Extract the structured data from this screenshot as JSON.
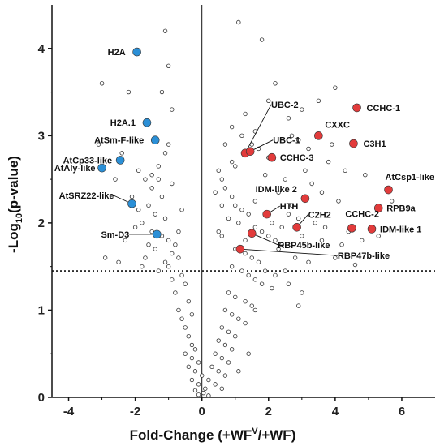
{
  "chart_data": {
    "type": "scatter",
    "title": "",
    "xlabel_main": "Fold-Change (+WF",
    "xlabel_sup": "V",
    "xlabel_tail": "/+WF)",
    "ylabel_pre": "-Log",
    "ylabel_sub": "10",
    "ylabel_post": "(p-value)",
    "xlim": [
      -4.5,
      7
    ],
    "ylim": [
      0,
      4.5
    ],
    "xticks": [
      -4,
      -2,
      0,
      2,
      4,
      6
    ],
    "yticks": [
      0,
      1,
      2,
      3,
      4
    ],
    "threshold_y": 1.45,
    "vline_x": 0,
    "colors": {
      "down": "#2b8fd6",
      "up": "#e23b3b",
      "background": "#ffffff",
      "bg_stroke": "#333333"
    },
    "background_points": [
      [
        -1.1,
        4.2
      ],
      [
        -1.0,
        3.8
      ],
      [
        -1.2,
        3.5
      ],
      [
        -0.9,
        3.3
      ],
      [
        -3.0,
        3.6
      ],
      [
        -1.0,
        2.9
      ],
      [
        -1.1,
        2.8
      ],
      [
        -1.3,
        2.5
      ],
      [
        -1.5,
        2.4
      ],
      [
        -1.2,
        2.3
      ],
      [
        -1.6,
        2.2
      ],
      [
        -1.4,
        2.1
      ],
      [
        -1.1,
        2.05
      ],
      [
        -1.8,
        2.0
      ],
      [
        -2.0,
        1.95
      ],
      [
        -1.5,
        1.9
      ],
      [
        -1.2,
        1.85
      ],
      [
        -1.0,
        1.8
      ],
      [
        -0.8,
        1.75
      ],
      [
        -1.4,
        1.7
      ],
      [
        -0.7,
        1.6
      ],
      [
        -1.7,
        1.6
      ],
      [
        -2.5,
        1.55
      ],
      [
        -1.0,
        1.5
      ],
      [
        -1.3,
        1.45
      ],
      [
        -0.6,
        1.4
      ],
      [
        -0.9,
        1.35
      ],
      [
        -0.5,
        1.3
      ],
      [
        -0.8,
        1.2
      ],
      [
        -0.4,
        1.1
      ],
      [
        -0.7,
        1.0
      ],
      [
        -0.3,
        0.95
      ],
      [
        -0.6,
        0.9
      ],
      [
        -0.5,
        0.8
      ],
      [
        -0.4,
        0.7
      ],
      [
        -0.3,
        0.6
      ],
      [
        -0.2,
        0.55
      ],
      [
        -0.5,
        0.5
      ],
      [
        -0.3,
        0.45
      ],
      [
        -0.1,
        0.4
      ],
      [
        -0.4,
        0.35
      ],
      [
        -0.2,
        0.3
      ],
      [
        0.0,
        0.25
      ],
      [
        -0.3,
        0.2
      ],
      [
        -0.1,
        0.15
      ],
      [
        0.1,
        0.1
      ],
      [
        -0.2,
        0.08
      ],
      [
        0.05,
        0.05
      ],
      [
        -0.1,
        0.03
      ],
      [
        0.2,
        0.02
      ],
      [
        -2.2,
        3.5
      ],
      [
        -2.4,
        2.8
      ],
      [
        -1.9,
        2.6
      ],
      [
        -1.7,
        2.5
      ],
      [
        -2.1,
        2.3
      ],
      [
        -2.6,
        2.5
      ],
      [
        -3.1,
        2.9
      ],
      [
        -1.3,
        2.65
      ],
      [
        -1.5,
        2.55
      ],
      [
        -1.9,
        2.15
      ],
      [
        -2.3,
        1.8
      ],
      [
        -1.6,
        1.75
      ],
      [
        -0.9,
        2.45
      ],
      [
        0.5,
        2.6
      ],
      [
        0.6,
        2.5
      ],
      [
        0.7,
        2.4
      ],
      [
        0.9,
        2.3
      ],
      [
        1.0,
        2.2
      ],
      [
        1.2,
        2.15
      ],
      [
        1.4,
        2.1
      ],
      [
        1.1,
        2.0
      ],
      [
        1.6,
        1.95
      ],
      [
        1.8,
        1.9
      ],
      [
        2.0,
        1.85
      ],
      [
        2.2,
        1.8
      ],
      [
        2.4,
        1.75
      ],
      [
        1.0,
        1.7
      ],
      [
        1.3,
        1.65
      ],
      [
        1.5,
        1.6
      ],
      [
        1.7,
        1.55
      ],
      [
        0.9,
        1.5
      ],
      [
        1.2,
        1.45
      ],
      [
        1.4,
        1.4
      ],
      [
        1.6,
        1.35
      ],
      [
        1.8,
        1.3
      ],
      [
        2.1,
        1.25
      ],
      [
        0.8,
        1.2
      ],
      [
        1.0,
        1.15
      ],
      [
        1.3,
        1.1
      ],
      [
        1.5,
        1.05
      ],
      [
        0.7,
        1.0
      ],
      [
        0.9,
        0.95
      ],
      [
        1.1,
        0.9
      ],
      [
        1.3,
        0.85
      ],
      [
        0.6,
        0.8
      ],
      [
        0.8,
        0.75
      ],
      [
        1.0,
        0.7
      ],
      [
        0.5,
        0.65
      ],
      [
        0.7,
        0.6
      ],
      [
        0.9,
        0.55
      ],
      [
        0.4,
        0.5
      ],
      [
        0.6,
        0.45
      ],
      [
        0.8,
        0.4
      ],
      [
        0.3,
        0.35
      ],
      [
        0.5,
        0.3
      ],
      [
        0.7,
        0.25
      ],
      [
        0.2,
        0.2
      ],
      [
        0.4,
        0.15
      ],
      [
        0.6,
        0.1
      ],
      [
        1.1,
        4.3
      ],
      [
        1.8,
        4.1
      ],
      [
        2.2,
        3.6
      ],
      [
        3.0,
        3.3
      ],
      [
        4.0,
        3.55
      ],
      [
        3.5,
        3.4
      ],
      [
        2.6,
        3.2
      ],
      [
        2.9,
        2.95
      ],
      [
        3.2,
        2.85
      ],
      [
        2.0,
        2.75
      ],
      [
        3.8,
        2.7
      ],
      [
        4.3,
        2.6
      ],
      [
        2.5,
        2.5
      ],
      [
        3.3,
        2.45
      ],
      [
        3.6,
        2.35
      ],
      [
        4.1,
        2.25
      ],
      [
        2.7,
        2.2
      ],
      [
        2.9,
        2.05
      ],
      [
        3.4,
        2.0
      ],
      [
        3.7,
        1.95
      ],
      [
        4.4,
        1.9
      ],
      [
        2.3,
        1.7
      ],
      [
        2.8,
        1.6
      ],
      [
        3.2,
        1.55
      ],
      [
        4.0,
        1.6
      ],
      [
        4.6,
        1.52
      ],
      [
        2.5,
        1.45
      ],
      [
        2.6,
        1.3
      ],
      [
        3.0,
        1.2
      ],
      [
        2.9,
        1.05
      ],
      [
        1.4,
        0.5
      ],
      [
        1.1,
        0.3
      ],
      [
        1.6,
        1.0
      ],
      [
        1.2,
        3.0
      ],
      [
        1.5,
        2.9
      ],
      [
        1.7,
        2.85
      ],
      [
        0.7,
        2.9
      ],
      [
        0.9,
        3.1
      ],
      [
        1.3,
        3.25
      ],
      [
        1.0,
        2.65
      ],
      [
        1.9,
        2.55
      ],
      [
        2.3,
        2.35
      ],
      [
        2.6,
        2.1
      ],
      [
        3.0,
        1.85
      ],
      [
        3.6,
        1.8
      ],
      [
        1.6,
        2.25
      ],
      [
        2.1,
        2.0
      ],
      [
        2.4,
        1.95
      ],
      [
        1.9,
        1.45
      ],
      [
        2.2,
        1.4
      ],
      [
        0.6,
        1.85
      ],
      [
        0.8,
        2.05
      ],
      [
        1.3,
        1.8
      ],
      [
        5.3,
        1.85
      ],
      [
        4.8,
        1.8
      ],
      [
        5.7,
        2.25
      ],
      [
        4.2,
        1.75
      ],
      [
        3.9,
        2.9
      ],
      [
        4.9,
        2.55
      ],
      [
        3.1,
        2.6
      ],
      [
        2.0,
        3.4
      ],
      [
        2.7,
        3.0
      ],
      [
        1.6,
        3.05
      ],
      [
        0.9,
        2.7
      ],
      [
        0.6,
        2.2
      ],
      [
        0.5,
        1.9
      ],
      [
        0.4,
        2.35
      ],
      [
        -0.6,
        2.15
      ],
      [
        -2.9,
        1.6
      ],
      [
        -1.8,
        1.5
      ],
      [
        -1.1,
        1.55
      ],
      [
        -0.7,
        1.9
      ],
      [
        -0.9,
        1.65
      ]
    ],
    "highlighted_down": [
      {
        "x": -1.95,
        "y": 3.96,
        "label": "H2A"
      },
      {
        "x": -1.65,
        "y": 3.15,
        "label": "H2A.1"
      },
      {
        "x": -1.4,
        "y": 2.95,
        "label": "AtSm-F-like"
      },
      {
        "x": -2.45,
        "y": 2.72,
        "label": "AtCp33-like"
      },
      {
        "x": -3.0,
        "y": 2.63,
        "label": "AtAly-like"
      },
      {
        "x": -2.1,
        "y": 2.22,
        "label": "AtSRZ22-like"
      },
      {
        "x": -1.35,
        "y": 1.87,
        "label": "Sm-D3"
      }
    ],
    "highlighted_up": [
      {
        "x": 4.65,
        "y": 3.32,
        "label": "CCHC-1"
      },
      {
        "x": 3.5,
        "y": 3.0,
        "label": "CXXC"
      },
      {
        "x": 4.55,
        "y": 2.91,
        "label": "C3H1"
      },
      {
        "x": 1.3,
        "y": 2.8,
        "label": "UBC-2"
      },
      {
        "x": 1.45,
        "y": 2.82,
        "label": "UBC-1"
      },
      {
        "x": 2.1,
        "y": 2.75,
        "label": "CCHC-3"
      },
      {
        "x": 5.6,
        "y": 2.38,
        "label": "AtCsp1-like"
      },
      {
        "x": 3.1,
        "y": 2.28,
        "label": "IDM-like 2"
      },
      {
        "x": 5.3,
        "y": 2.17,
        "label": "RPB9a"
      },
      {
        "x": 1.95,
        "y": 2.1,
        "label": "HTH"
      },
      {
        "x": 2.85,
        "y": 1.95,
        "label": "C2H2"
      },
      {
        "x": 4.5,
        "y": 1.94,
        "label": "CCHC-2"
      },
      {
        "x": 5.1,
        "y": 1.93,
        "label": "IDM-like 1"
      },
      {
        "x": 1.5,
        "y": 1.88,
        "label": "RBP45b-like"
      },
      {
        "x": 1.15,
        "y": 1.7,
        "label": "RBP47b-like"
      }
    ]
  }
}
